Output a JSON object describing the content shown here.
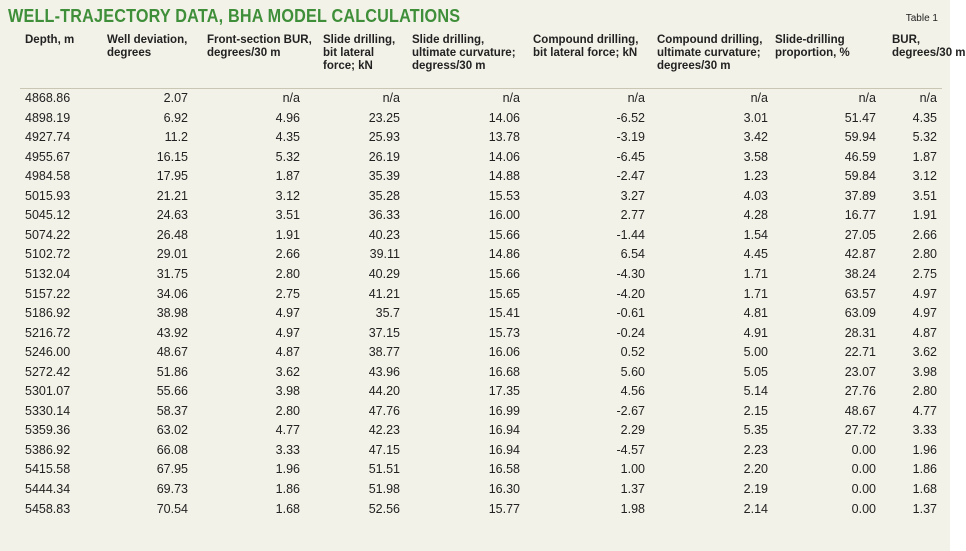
{
  "header": {
    "title": "WELL-TRAJECTORY DATA, BHA MODEL CALCULATIONS",
    "tag": "Table 1"
  },
  "table": {
    "columns": [
      [
        "Depth, m"
      ],
      [
        "Well deviation,",
        "degrees"
      ],
      [
        "Front-section BUR,",
        "degrees/30 m"
      ],
      [
        "Slide drilling,",
        "bit lateral",
        "force; kN"
      ],
      [
        "Slide drilling,",
        "ultimate curvature;",
        "degress/30 m"
      ],
      [
        "Compound drilling,",
        "bit lateral force; kN"
      ],
      [
        "Compound drilling,",
        "ultimate curvature;",
        "degrees/30 m"
      ],
      [
        "Slide-drilling",
        "proportion, %"
      ],
      [
        "BUR,",
        "degrees/30 m"
      ]
    ],
    "rows": [
      [
        "4868.86",
        "2.07",
        "n/a",
        "n/a",
        "n/a",
        "n/a",
        "n/a",
        "n/a",
        "n/a"
      ],
      [
        "4898.19",
        "6.92",
        "4.96",
        "23.25",
        "14.06",
        "-6.52",
        "3.01",
        "51.47",
        "4.35"
      ],
      [
        "4927.74",
        "11.2",
        "4.35",
        "25.93",
        "13.78",
        "-3.19",
        "3.42",
        "59.94",
        "5.32"
      ],
      [
        "4955.67",
        "16.15",
        "5.32",
        "26.19",
        "14.06",
        "-6.45",
        "3.58",
        "46.59",
        "1.87"
      ],
      [
        "4984.58",
        "17.95",
        "1.87",
        "35.39",
        "14.88",
        "-2.47",
        "1.23",
        "59.84",
        "3.12"
      ],
      [
        "5015.93",
        "21.21",
        "3.12",
        "35.28",
        "15.53",
        "3.27",
        "4.03",
        "37.89",
        "3.51"
      ],
      [
        "5045.12",
        "24.63",
        "3.51",
        "36.33",
        "16.00",
        "2.77",
        "4.28",
        "16.77",
        "1.91"
      ],
      [
        "5074.22",
        "26.48",
        "1.91",
        "40.23",
        "15.66",
        "-1.44",
        "1.54",
        "27.05",
        "2.66"
      ],
      [
        "5102.72",
        "29.01",
        "2.66",
        "39.11",
        "14.86",
        "6.54",
        "4.45",
        "42.87",
        "2.80"
      ],
      [
        "5132.04",
        "31.75",
        "2.80",
        "40.29",
        "15.66",
        "-4.30",
        "1.71",
        "38.24",
        "2.75"
      ],
      [
        "5157.22",
        "34.06",
        "2.75",
        "41.21",
        "15.65",
        "-4.20",
        "1.71",
        "63.57",
        "4.97"
      ],
      [
        "5186.92",
        "38.98",
        "4.97",
        "35.7",
        "15.41",
        "-0.61",
        "4.81",
        "63.09",
        "4.97"
      ],
      [
        "5216.72",
        "43.92",
        "4.97",
        "37.15",
        "15.73",
        "-0.24",
        "4.91",
        "28.31",
        "4.87"
      ],
      [
        "5246.00",
        "48.67",
        "4.87",
        "38.77",
        "16.06",
        "0.52",
        "5.00",
        "22.71",
        "3.62"
      ],
      [
        "5272.42",
        "51.86",
        "3.62",
        "43.96",
        "16.68",
        "5.60",
        "5.05",
        "23.07",
        "3.98"
      ],
      [
        "5301.07",
        "55.66",
        "3.98",
        "44.20",
        "17.35",
        "4.56",
        "5.14",
        "27.76",
        "2.80"
      ],
      [
        "5330.14",
        "58.37",
        "2.80",
        "47.76",
        "16.99",
        "-2.67",
        "2.15",
        "48.67",
        "4.77"
      ],
      [
        "5359.36",
        "63.02",
        "4.77",
        "42.23",
        "16.94",
        "2.29",
        "5.35",
        "27.72",
        "3.33"
      ],
      [
        "5386.92",
        "66.08",
        "3.33",
        "47.15",
        "16.94",
        "-4.57",
        "2.23",
        "0.00",
        "1.96"
      ],
      [
        "5415.58",
        "67.95",
        "1.96",
        "51.51",
        "16.58",
        "1.00",
        "2.20",
        "0.00",
        "1.86"
      ],
      [
        "5444.34",
        "69.73",
        "1.86",
        "51.98",
        "16.30",
        "1.37",
        "2.19",
        "0.00",
        "1.68"
      ],
      [
        "5458.83",
        "70.54",
        "1.68",
        "52.56",
        "15.77",
        "1.98",
        "2.14",
        "0.00",
        "1.37"
      ]
    ]
  }
}
